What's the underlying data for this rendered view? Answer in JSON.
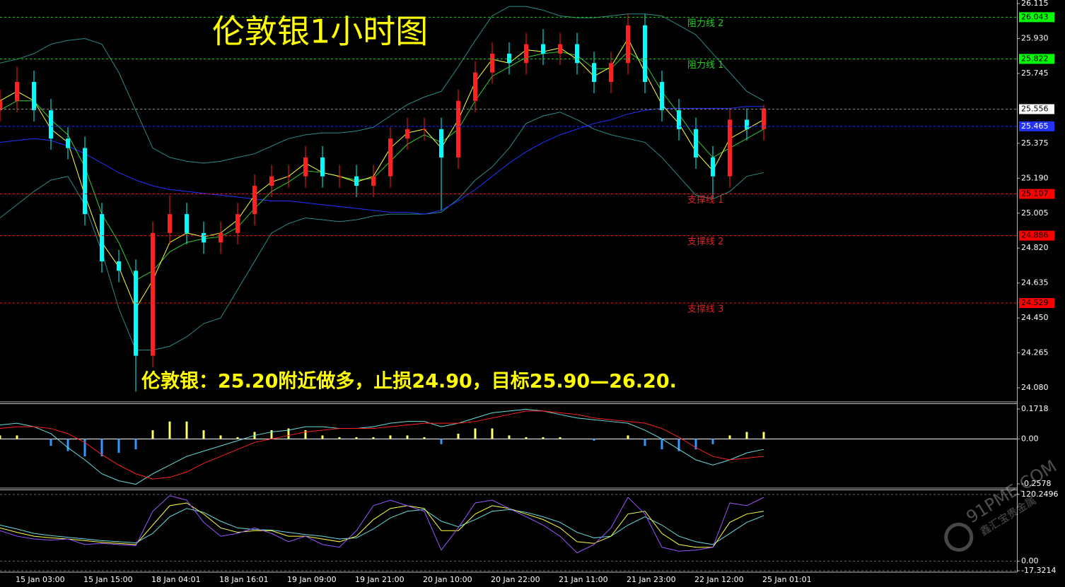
{
  "chart_data": [
    {
      "type": "candlestick",
      "title": "伦敦银1小时图",
      "annotations": [
        "伦敦银：25.20附近做多，止损24.90，目标25.90—26.20."
      ],
      "watermark": [
        "91PME.COM",
        "鑫汇宝贵金属"
      ],
      "categories": [
        null,
        "15 Jan 03:00",
        null,
        null,
        null,
        "15 Jan 15:00",
        null,
        null,
        null,
        "18 Jan 04:01",
        null,
        null,
        null,
        "18 Jan 16:01",
        null,
        null,
        null,
        "19 Jan 09:00",
        null,
        null,
        null,
        "19 Jan 21:00",
        null,
        null,
        null,
        "20 Jan 10:00",
        null,
        null,
        null,
        "20 Jan 22:00",
        null,
        null,
        null,
        "21 Jan 11:00",
        null,
        null,
        null,
        "21 Jan 23:00",
        null,
        null,
        null,
        "22 Jan 12:00",
        null,
        null,
        null,
        "25 Jan 01:01"
      ],
      "open": [
        25.55,
        25.6,
        25.7,
        25.55,
        25.4,
        25.35,
        25.0,
        24.75,
        24.7,
        24.25,
        24.9,
        25.0,
        24.9,
        24.85,
        24.9,
        25.0,
        25.15,
        25.2,
        25.2,
        25.3,
        25.2,
        25.2,
        25.15,
        25.2,
        25.4,
        25.45,
        25.45,
        25.3,
        25.6,
        25.75,
        25.85,
        25.8,
        25.9,
        25.85,
        25.9,
        25.8,
        25.7,
        25.8,
        26.0,
        25.7,
        25.55,
        25.45,
        25.3,
        25.2,
        25.5,
        25.45
      ],
      "high": [
        25.66,
        25.78,
        25.76,
        25.61,
        25.46,
        25.41,
        25.06,
        24.81,
        24.76,
        24.96,
        25.1,
        25.06,
        24.96,
        24.96,
        25.06,
        25.21,
        25.26,
        25.26,
        25.36,
        25.36,
        25.26,
        25.26,
        25.26,
        25.46,
        25.51,
        25.51,
        25.51,
        25.66,
        25.81,
        25.91,
        25.91,
        25.96,
        25.98,
        25.96,
        25.96,
        25.86,
        25.86,
        26.06,
        26.06,
        25.76,
        25.61,
        25.51,
        25.36,
        25.56,
        25.56,
        25.58
      ],
      "low": [
        25.49,
        25.54,
        25.49,
        25.34,
        25.29,
        24.94,
        24.69,
        24.64,
        24.06,
        24.19,
        24.84,
        24.84,
        24.79,
        24.79,
        24.84,
        24.94,
        25.09,
        25.14,
        25.14,
        25.14,
        25.14,
        25.09,
        25.09,
        25.14,
        25.34,
        25.39,
        25.02,
        25.24,
        25.54,
        25.69,
        25.74,
        25.74,
        25.79,
        25.79,
        25.74,
        25.64,
        25.64,
        25.74,
        25.64,
        25.49,
        25.39,
        25.24,
        25.08,
        25.14,
        25.39,
        25.39
      ],
      "close": [
        25.6,
        25.7,
        25.55,
        25.4,
        25.35,
        25.0,
        24.75,
        24.7,
        24.25,
        24.9,
        25.0,
        24.9,
        24.85,
        24.9,
        25.0,
        25.15,
        25.2,
        25.2,
        25.3,
        25.2,
        25.2,
        25.15,
        25.2,
        25.4,
        25.45,
        25.45,
        25.3,
        25.6,
        25.75,
        25.85,
        25.8,
        25.9,
        25.85,
        25.9,
        25.8,
        25.7,
        25.8,
        26.0,
        25.7,
        25.55,
        25.45,
        25.3,
        25.2,
        25.5,
        25.45,
        25.56
      ],
      "up_color": "#ff2020",
      "down_color": "#00ffff",
      "series": [
        {
          "color": "#2e8b8b",
          "values": [
            25.8,
            25.82,
            25.85,
            25.9,
            25.92,
            25.93,
            25.9,
            25.75,
            25.55,
            25.35,
            25.3,
            25.28,
            25.27,
            25.28,
            25.3,
            25.32,
            25.36,
            25.4,
            25.42,
            25.43,
            25.43,
            25.44,
            25.46,
            25.52,
            25.58,
            25.62,
            25.65,
            25.78,
            25.92,
            26.05,
            26.1,
            26.1,
            26.08,
            26.05,
            26.04,
            26.04,
            26.05,
            26.06,
            26.06,
            26.05,
            26.0,
            25.95,
            25.85,
            25.75,
            25.65,
            25.6
          ]
        },
        {
          "color": "#2e8b8b",
          "values": [
            24.98,
            25.05,
            25.12,
            25.18,
            25.2,
            25.05,
            24.8,
            24.5,
            24.28,
            24.28,
            24.3,
            24.35,
            24.42,
            24.45,
            24.6,
            24.75,
            24.9,
            24.95,
            24.98,
            24.97,
            24.96,
            24.97,
            24.99,
            25.0,
            25.0,
            25.0,
            25.01,
            25.08,
            25.18,
            25.25,
            25.35,
            25.48,
            25.52,
            25.54,
            25.5,
            25.45,
            25.42,
            25.4,
            25.38,
            25.3,
            25.2,
            25.1,
            25.08,
            25.12,
            25.2,
            25.22
          ]
        },
        {
          "color": "#2233ff",
          "values": [
            25.38,
            25.39,
            25.4,
            25.39,
            25.36,
            25.32,
            25.27,
            25.22,
            25.18,
            25.15,
            25.13,
            25.12,
            25.11,
            25.1,
            25.09,
            25.08,
            25.07,
            25.07,
            25.06,
            25.05,
            25.04,
            25.03,
            25.02,
            25.01,
            25.01,
            25.0,
            25.02,
            25.07,
            25.13,
            25.2,
            25.27,
            25.33,
            25.38,
            25.42,
            25.45,
            25.48,
            25.5,
            25.53,
            25.55,
            25.56,
            25.56,
            25.56,
            25.56,
            25.56,
            25.57,
            25.57
          ]
        },
        {
          "color": "#32cd32",
          "values": [
            25.55,
            25.6,
            25.6,
            25.5,
            25.42,
            25.25,
            25.0,
            24.85,
            24.65,
            24.7,
            24.8,
            24.85,
            24.87,
            24.88,
            24.93,
            25.03,
            25.12,
            25.17,
            25.23,
            25.22,
            25.2,
            25.18,
            25.19,
            25.28,
            25.37,
            25.42,
            25.38,
            25.45,
            25.6,
            25.73,
            25.78,
            25.83,
            25.85,
            25.86,
            25.84,
            25.77,
            25.77,
            25.86,
            25.8,
            25.65,
            25.53,
            25.4,
            25.3,
            25.35,
            25.4,
            25.45
          ]
        },
        {
          "color": "#ffff40",
          "values": [
            25.6,
            25.65,
            25.6,
            25.45,
            25.38,
            25.1,
            24.85,
            24.72,
            24.5,
            24.65,
            24.85,
            24.9,
            24.88,
            24.9,
            24.97,
            25.1,
            25.17,
            25.2,
            25.27,
            25.22,
            25.2,
            25.17,
            25.2,
            25.35,
            25.43,
            25.45,
            25.35,
            25.5,
            25.7,
            25.82,
            25.8,
            25.87,
            25.86,
            25.88,
            25.82,
            25.73,
            25.78,
            25.93,
            25.75,
            25.58,
            25.48,
            25.33,
            25.23,
            25.4,
            25.45,
            25.5
          ]
        }
      ],
      "ylim": [
        24.009,
        26.134
      ],
      "yticks": [
        26.115,
        {
          "value": 25.93,
          "label": "25.930"
        },
        25.745,
        25.375,
        {
          "value": 25.19,
          "label": "25.190"
        },
        25.005,
        {
          "value": 24.82,
          "label": "24.820"
        },
        24.635,
        {
          "value": 24.45,
          "label": "24.450"
        },
        24.265,
        {
          "value": 24.08,
          "label": "24.080"
        }
      ],
      "levels": [
        {
          "value": 26.043,
          "name": "阻力线 2",
          "color": "#22cc22",
          "box_color": "#00ff00",
          "text_color": "#000000"
        },
        {
          "value": 25.822,
          "name": "阻力线 1",
          "color": "#22cc22",
          "box_color": "#00ff00",
          "text_color": "#000000"
        },
        {
          "value": 25.556,
          "color": "#888888",
          "box_color": "#ffffff",
          "text_color": "#000000"
        },
        {
          "value": 25.465,
          "color": "#2233ff",
          "box_color": "#2233ff",
          "text_color": "#ffffff"
        },
        {
          "value": 25.107,
          "name": "支撑线 1",
          "color": "#dd2222",
          "box_color": "#ff0000",
          "text_color": "#000000"
        },
        {
          "value": 24.886,
          "name": "支撑线 2",
          "color": "#dd2222",
          "box_color": "#ff0000",
          "text_color": "#000000"
        },
        {
          "value": 24.529,
          "name": "支撑线 3",
          "color": "#dd2222",
          "box_color": "#ff0000",
          "text_color": "#000000"
        }
      ]
    },
    {
      "type": "macd",
      "histogram": {
        "up_color": "#ffff66",
        "down_color": "#3399ff",
        "values": [
          0.02,
          0.02,
          0.0,
          -0.04,
          -0.07,
          -0.1,
          -0.1,
          -0.08,
          -0.06,
          0.05,
          0.1,
          0.1,
          0.05,
          0.02,
          0.01,
          0.04,
          0.05,
          0.06,
          0.05,
          0.02,
          0.01,
          0.01,
          0.01,
          0.02,
          0.02,
          0.01,
          -0.03,
          0.03,
          0.06,
          0.06,
          0.02,
          0.01,
          0.01,
          0.01,
          0.0,
          -0.01,
          0.0,
          0.02,
          -0.04,
          -0.06,
          -0.07,
          -0.06,
          -0.03,
          0.02,
          0.04,
          0.04
        ]
      },
      "series": [
        {
          "color": "#66dddd",
          "values": [
            0.08,
            0.09,
            0.07,
            0.03,
            -0.05,
            -0.12,
            -0.2,
            -0.24,
            -0.26,
            -0.2,
            -0.15,
            -0.1,
            -0.07,
            -0.04,
            -0.01,
            0.02,
            0.04,
            0.05,
            0.07,
            0.07,
            0.06,
            0.06,
            0.07,
            0.09,
            0.1,
            0.1,
            0.07,
            0.09,
            0.12,
            0.15,
            0.16,
            0.17,
            0.16,
            0.14,
            0.12,
            0.11,
            0.1,
            0.09,
            0.05,
            0.0,
            -0.06,
            -0.12,
            -0.15,
            -0.12,
            -0.08,
            -0.06
          ]
        },
        {
          "color": "#ff2020",
          "values": [
            0.06,
            0.07,
            0.07,
            0.06,
            0.03,
            -0.02,
            -0.09,
            -0.15,
            -0.2,
            -0.23,
            -0.22,
            -0.19,
            -0.14,
            -0.1,
            -0.06,
            -0.02,
            0.0,
            0.02,
            0.04,
            0.05,
            0.06,
            0.06,
            0.06,
            0.07,
            0.08,
            0.09,
            0.09,
            0.09,
            0.1,
            0.12,
            0.14,
            0.16,
            0.16,
            0.15,
            0.14,
            0.12,
            0.11,
            0.1,
            0.09,
            0.06,
            0.01,
            -0.05,
            -0.1,
            -0.12,
            -0.11,
            -0.1
          ]
        }
      ],
      "ylim": [
        -0.278,
        0.2
      ],
      "yticks": [
        0.1718,
        {
          "value": 0,
          "label": "0.00"
        },
        -0.2578
      ],
      "grid": false
    },
    {
      "type": "line",
      "series": [
        {
          "color": "#66dddd",
          "values": [
            65,
            58,
            50,
            46,
            43,
            40,
            37,
            35,
            33,
            50,
            80,
            95,
            88,
            72,
            60,
            57,
            56,
            52,
            48,
            45,
            40,
            42,
            58,
            78,
            90,
            93,
            72,
            62,
            75,
            90,
            93,
            88,
            80,
            70,
            52,
            42,
            45,
            65,
            80,
            65,
            45,
            35,
            30,
            50,
            70,
            82
          ]
        },
        {
          "color": "#ffff40",
          "values": [
            60,
            52,
            45,
            42,
            40,
            37,
            34,
            32,
            30,
            65,
            100,
            105,
            85,
            60,
            52,
            55,
            55,
            45,
            45,
            40,
            35,
            45,
            75,
            95,
            100,
            95,
            55,
            55,
            85,
            100,
            95,
            85,
            75,
            60,
            35,
            32,
            45,
            85,
            90,
            50,
            30,
            25,
            25,
            70,
            85,
            90
          ]
        },
        {
          "color": "#9955ff",
          "values": [
            55,
            45,
            40,
            38,
            40,
            30,
            32,
            30,
            28,
            90,
            118,
            110,
            70,
            45,
            50,
            60,
            50,
            35,
            45,
            30,
            25,
            55,
            100,
            110,
            100,
            90,
            20,
            60,
            105,
            110,
            95,
            80,
            65,
            45,
            15,
            30,
            60,
            115,
            85,
            25,
            18,
            20,
            25,
            105,
            100,
            115
          ]
        }
      ],
      "ylim": [
        -17.3214,
        120.2496
      ],
      "yticks": [
        120.2496,
        {
          "value": 0,
          "label": "0.00"
        },
        -17.3214
      ],
      "grid": true
    }
  ]
}
